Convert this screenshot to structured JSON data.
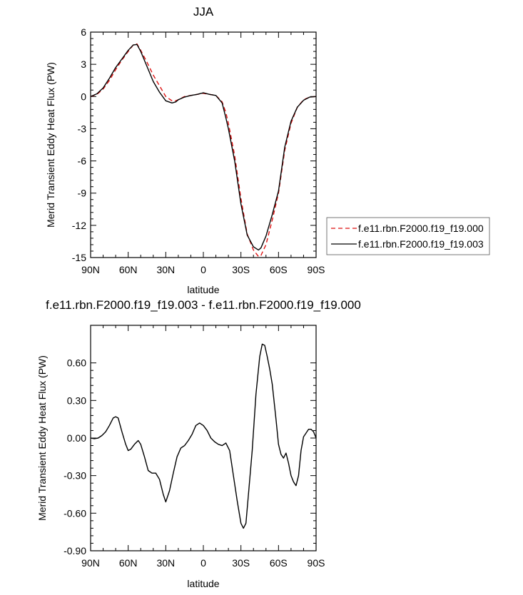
{
  "chart_data": [
    {
      "type": "line",
      "title": "JJA",
      "xlabel": "latitude",
      "ylabel": "Merid Transient Eddy Heat Flux (PW)",
      "xlim": [
        90,
        -90
      ],
      "ylim": [
        -15,
        6
      ],
      "x_ticks": [
        90,
        60,
        30,
        0,
        -30,
        -60,
        -90
      ],
      "x_tick_labels": [
        "90N",
        "60N",
        "30N",
        "0",
        "30S",
        "60S",
        "90S"
      ],
      "y_ticks": [
        6,
        3,
        0,
        -3,
        -6,
        -9,
        -12,
        -15
      ],
      "y_tick_labels": [
        "6",
        "3",
        "0",
        "-3",
        "-6",
        "-9",
        "-12",
        "-15"
      ],
      "grid": false,
      "legend_position": "right",
      "series": [
        {
          "name": "f.e11.rbn.F2000.f19_f19.000",
          "color": "#dd1111",
          "dash": "dashed",
          "x": [
            90,
            85,
            80,
            75,
            70,
            65,
            60,
            56,
            53,
            50,
            45,
            40,
            35,
            30,
            25,
            22,
            20,
            15,
            10,
            5,
            0,
            -5,
            -10,
            -15,
            -18,
            -20,
            -25,
            -30,
            -35,
            -40,
            -44,
            -46,
            -50,
            -55,
            -60,
            -65,
            -70,
            -75,
            -80,
            -85,
            -90
          ],
          "y": [
            0.0,
            0.2,
            0.7,
            1.5,
            2.5,
            3.4,
            4.2,
            4.8,
            4.9,
            4.3,
            3.2,
            2.0,
            1.0,
            0.0,
            -0.4,
            -0.4,
            -0.3,
            0.0,
            0.1,
            0.2,
            0.3,
            0.2,
            0.1,
            -0.5,
            -1.5,
            -2.5,
            -5.5,
            -9.5,
            -12.8,
            -14.3,
            -14.9,
            -14.8,
            -13.8,
            -11.5,
            -9.0,
            -5.0,
            -2.5,
            -1.0,
            -0.3,
            -0.05,
            0.0
          ]
        },
        {
          "name": "f.e11.rbn.F2000.f19_f19.003",
          "color": "#000000",
          "dash": "solid",
          "x": [
            90,
            85,
            80,
            75,
            70,
            65,
            60,
            56,
            53,
            50,
            45,
            40,
            35,
            30,
            25,
            22,
            20,
            15,
            10,
            5,
            0,
            -5,
            -10,
            -15,
            -18,
            -20,
            -25,
            -30,
            -35,
            -40,
            -44,
            -46,
            -50,
            -55,
            -60,
            -65,
            -70,
            -75,
            -80,
            -85,
            -90
          ],
          "y": [
            0.0,
            0.25,
            0.8,
            1.7,
            2.7,
            3.5,
            4.3,
            4.8,
            4.85,
            4.2,
            2.8,
            1.4,
            0.4,
            -0.4,
            -0.6,
            -0.5,
            -0.3,
            -0.05,
            0.1,
            0.2,
            0.35,
            0.2,
            0.1,
            -0.6,
            -2.0,
            -3.0,
            -6.0,
            -10.0,
            -12.9,
            -14.0,
            -14.3,
            -14.1,
            -13.0,
            -11.0,
            -8.8,
            -4.7,
            -2.3,
            -1.0,
            -0.35,
            -0.05,
            0.0
          ]
        }
      ]
    },
    {
      "type": "line",
      "title": "f.e11.rbn.F2000.f19_f19.003 - f.e11.rbn.F2000.f19_f19.000",
      "xlabel": "latitude",
      "ylabel": "Merid Transient Eddy Heat Flux (PW)",
      "xlim": [
        90,
        -90
      ],
      "ylim": [
        -0.9,
        0.9
      ],
      "x_ticks": [
        90,
        60,
        30,
        0,
        -30,
        -60,
        -90
      ],
      "x_tick_labels": [
        "90N",
        "60N",
        "30N",
        "0",
        "30S",
        "60S",
        "90S"
      ],
      "y_ticks": [
        0.6,
        0.3,
        0.0,
        -0.3,
        -0.6,
        -0.9
      ],
      "y_tick_labels": [
        "0.60",
        "0.30",
        "0.00",
        "-0.30",
        "-0.60",
        "-0.90"
      ],
      "grid": false,
      "series": [
        {
          "name": "",
          "color": "#000000",
          "dash": "solid",
          "x": [
            90,
            87,
            84,
            81,
            78,
            75,
            72,
            70,
            68,
            65,
            62,
            60,
            58,
            55,
            52,
            50,
            47,
            44,
            41,
            38,
            35,
            32,
            30,
            27,
            24,
            21,
            18,
            15,
            12,
            9,
            6,
            3,
            0,
            -3,
            -6,
            -9,
            -12,
            -15,
            -18,
            -21,
            -24,
            -27,
            -30,
            -32,
            -34,
            -36,
            -39,
            -42,
            -45,
            -47,
            -49,
            -51,
            -53,
            -55,
            -58,
            -60,
            -62,
            -64,
            -66,
            -68,
            -70,
            -72,
            -74,
            -76,
            -78,
            -80,
            -82,
            -84,
            -86,
            -88,
            -90
          ],
          "y": [
            0.0,
            -0.005,
            0.0,
            0.02,
            0.05,
            0.1,
            0.16,
            0.17,
            0.16,
            0.05,
            -0.05,
            -0.1,
            -0.09,
            -0.05,
            -0.02,
            -0.05,
            -0.15,
            -0.26,
            -0.28,
            -0.28,
            -0.33,
            -0.45,
            -0.51,
            -0.42,
            -0.28,
            -0.15,
            -0.08,
            -0.06,
            -0.02,
            0.03,
            0.1,
            0.12,
            0.1,
            0.06,
            0.0,
            -0.03,
            -0.05,
            -0.06,
            -0.04,
            -0.1,
            -0.3,
            -0.5,
            -0.68,
            -0.72,
            -0.68,
            -0.45,
            -0.1,
            0.35,
            0.65,
            0.75,
            0.74,
            0.65,
            0.55,
            0.43,
            0.15,
            -0.05,
            -0.13,
            -0.16,
            -0.12,
            -0.2,
            -0.3,
            -0.35,
            -0.38,
            -0.3,
            -0.1,
            0.01,
            0.04,
            0.07,
            0.07,
            0.05,
            0.0
          ]
        }
      ]
    }
  ]
}
